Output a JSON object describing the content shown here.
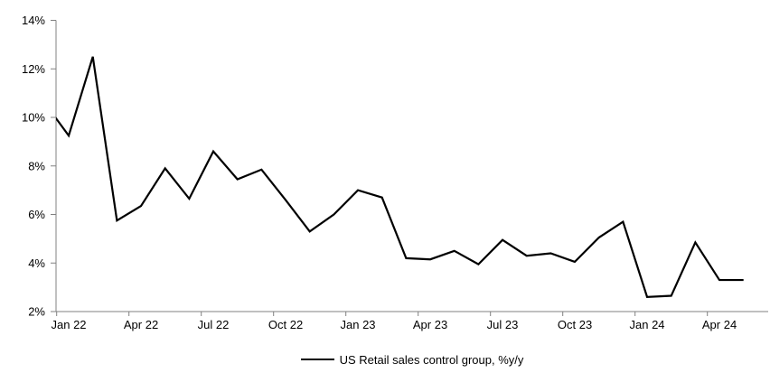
{
  "chart_data": {
    "type": "line",
    "title": "",
    "legend_label": "US Retail sales control group, %y/y",
    "legend_position": "bottom-center",
    "grid": false,
    "months": [
      "Dec 21",
      "Jan 22",
      "Feb 22",
      "Mar 22",
      "Apr 22",
      "May 22",
      "Jun 22",
      "Jul 22",
      "Aug 22",
      "Sep 22",
      "Oct 22",
      "Nov 22",
      "Dec 22",
      "Jan 23",
      "Feb 23",
      "Mar 23",
      "Apr 23",
      "May 23",
      "Jun 23",
      "Jul 23",
      "Aug 23",
      "Sep 23",
      "Oct 23",
      "Nov 23",
      "Dec 23",
      "Jan 24",
      "Feb 24",
      "Mar 24",
      "Apr 24",
      "May 24"
    ],
    "values": [
      10.6,
      9.25,
      12.5,
      5.75,
      6.35,
      7.9,
      6.65,
      8.6,
      7.45,
      7.85,
      6.6,
      5.3,
      6.0,
      7.0,
      6.7,
      4.2,
      4.15,
      4.5,
      3.95,
      4.95,
      4.3,
      4.4,
      4.05,
      5.05,
      5.7,
      2.6,
      2.65,
      4.85,
      3.3,
      3.3
    ],
    "series_name": "US Retail sales control group, %y/y",
    "ylim": [
      2,
      14
    ],
    "ytick_labels": [
      "14%",
      "12%",
      "10%",
      "8%",
      "6%",
      "4%",
      "2%"
    ],
    "ytick_values": [
      14,
      12,
      10,
      8,
      6,
      4,
      2
    ],
    "xtick_labels": [
      "Jan 22",
      "Apr 22",
      "Jul 22",
      "Oct 22",
      "Jan 23",
      "Apr 23",
      "Jul 23",
      "Oct 23",
      "Jan 24",
      "Apr 24"
    ],
    "x_axis_visible_start": "Jan 22",
    "first_point_clipped_at_left_edge": true,
    "colors": {
      "line": "#000000",
      "axis": "#808080",
      "text": "#000000",
      "background": "#ffffff"
    }
  }
}
